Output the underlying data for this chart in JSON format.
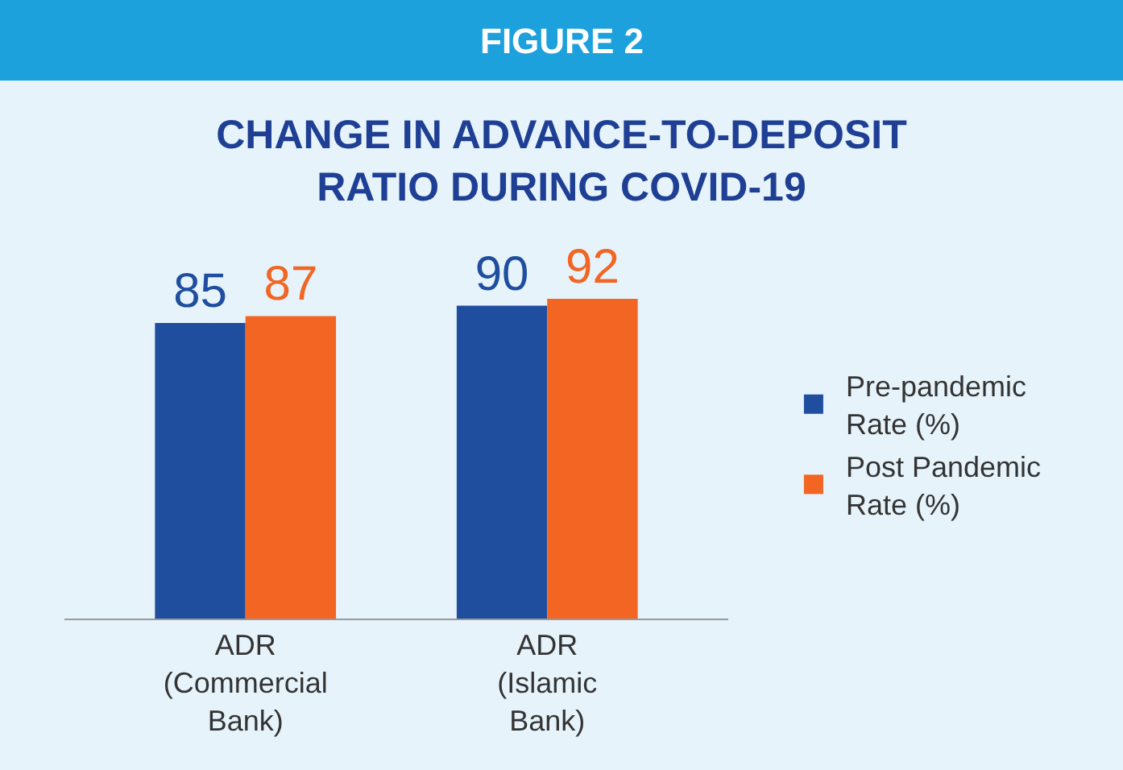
{
  "chart_data": {
    "type": "bar",
    "title": "FIGURE 2",
    "subtitle": "CHANGE IN ADVANCE-TO-DEPOSIT RATIO DURING COVID-19",
    "categories": [
      "ADR (Commercial Bank)",
      "ADR (Islamic Bank)"
    ],
    "series": [
      {
        "name": "Pre-pandemic Rate (%)",
        "color": "#1f4e9e",
        "values": [
          85,
          90
        ]
      },
      {
        "name": "Post Pandemic Rate (%)",
        "color": "#f26522",
        "values": [
          87,
          92
        ]
      }
    ],
    "tick_labels": "x",
    "data_labels": true,
    "grid": false,
    "legend": "right"
  }
}
